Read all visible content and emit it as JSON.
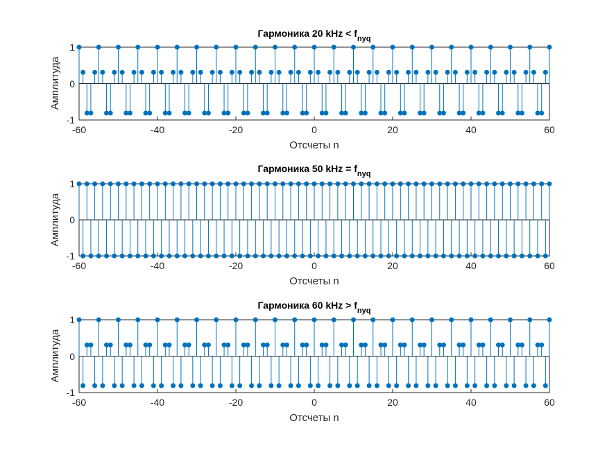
{
  "chart_data": [
    {
      "type": "stem",
      "title": "Гармоника 20 kHz < f",
      "title_sub": "nyq",
      "xlabel": "Отсчеты n",
      "ylabel": "Амплитуда",
      "xlim": [
        -60,
        60
      ],
      "ylim": [
        -1,
        1
      ],
      "xticks": [
        "-60",
        "-40",
        "-20",
        "0",
        "20",
        "40",
        "60"
      ],
      "yticks": [
        "-1",
        "0",
        "1"
      ],
      "n_start": -60,
      "n_end": 60,
      "pattern": [
        1,
        0.309,
        -0.809,
        -0.809,
        0.309
      ],
      "color": "#0072BD"
    },
    {
      "type": "stem",
      "title": "Гармоника 50 kHz = f",
      "title_sub": "nyq",
      "xlabel": "Отсчеты n",
      "ylabel": "Амплитуда",
      "xlim": [
        -60,
        60
      ],
      "ylim": [
        -1,
        1
      ],
      "xticks": [
        "-60",
        "-40",
        "-20",
        "0",
        "20",
        "40",
        "60"
      ],
      "yticks": [
        "-1",
        "0",
        "1"
      ],
      "n_start": -60,
      "n_end": 60,
      "pattern": [
        1,
        -1
      ],
      "color": "#0072BD"
    },
    {
      "type": "stem",
      "title": "Гармоника 60 kHz > f",
      "title_sub": "nyq",
      "xlabel": "Отсчеты n",
      "ylabel": "Амплитуда",
      "xlim": [
        -60,
        60
      ],
      "ylim": [
        -1,
        1
      ],
      "xticks": [
        "-60",
        "-40",
        "-20",
        "0",
        "20",
        "40",
        "60"
      ],
      "yticks": [
        "-1",
        "0",
        "1"
      ],
      "n_start": -60,
      "n_end": 60,
      "pattern": [
        1,
        -0.809,
        0.309,
        0.309,
        -0.809
      ],
      "color": "#0072BD"
    }
  ]
}
